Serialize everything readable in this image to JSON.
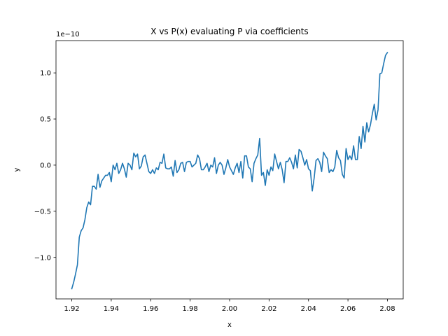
{
  "chart_data": {
    "type": "line",
    "title": "X vs P(x) evaluating P via coefficients",
    "xlabel": "x",
    "ylabel": "y",
    "offset_text": "1e−10",
    "xlim": [
      1.912,
      2.088
    ],
    "ylim": [
      -1.45,
      1.35
    ],
    "xticks": [
      1.92,
      1.94,
      1.96,
      1.98,
      2.0,
      2.02,
      2.04,
      2.06,
      2.08
    ],
    "xtick_labels": [
      "1.92",
      "1.94",
      "1.96",
      "1.98",
      "2.00",
      "2.02",
      "2.04",
      "2.06",
      "2.08"
    ],
    "yticks": [
      -1.0,
      -0.5,
      0.0,
      0.5,
      1.0
    ],
    "ytick_labels": [
      "−1.0",
      "−0.5",
      "0.0",
      "0.5",
      "1.0"
    ],
    "grid": false,
    "line_color": "#1f77b4",
    "series": [
      {
        "x_start": 1.92,
        "x_end": 2.08,
        "y": [
          -1.34,
          -1.27,
          -1.18,
          -1.08,
          -0.78,
          -0.71,
          -0.68,
          -0.59,
          -0.46,
          -0.4,
          -0.43,
          -0.23,
          -0.23,
          -0.26,
          -0.1,
          -0.24,
          -0.17,
          -0.14,
          -0.11,
          -0.11,
          -0.08,
          -0.18,
          0.0,
          -0.05,
          0.02,
          -0.09,
          -0.05,
          0.02,
          -0.04,
          -0.13,
          0.02,
          0.0,
          -0.05,
          0.13,
          0.09,
          0.12,
          -0.04,
          -0.01,
          0.09,
          0.11,
          0.02,
          -0.07,
          -0.09,
          -0.05,
          -0.09,
          -0.03,
          -0.05,
          0.03,
          0.02,
          0.12,
          -0.03,
          -0.04,
          -0.04,
          -0.02,
          -0.12,
          0.05,
          -0.08,
          -0.05,
          0.02,
          0.03,
          -0.07,
          0.03,
          0.04,
          0.04,
          -0.02,
          0.0,
          0.02,
          0.11,
          0.07,
          -0.05,
          -0.05,
          -0.02,
          0.02,
          -0.07,
          0.0,
          -0.02,
          0.08,
          -0.09,
          0.0,
          0.03,
          0.0,
          -0.1,
          -0.03,
          0.06,
          -0.02,
          -0.06,
          -0.1,
          -0.03,
          0.02,
          -0.08,
          0.04,
          -0.14,
          0.1,
          0.1,
          -0.02,
          -0.04,
          -0.18,
          0.02,
          0.07,
          0.11,
          0.29,
          -0.11,
          -0.08,
          -0.22,
          -0.05,
          -0.11,
          -0.02,
          -0.06,
          0.12,
          0.04,
          -0.04,
          0.03,
          -0.05,
          -0.19,
          0.04,
          0.04,
          0.08,
          0.03,
          -0.04,
          0.11,
          -0.03,
          0.17,
          0.15,
          0.08,
          0.0,
          0.06,
          -0.04,
          -0.06,
          -0.28,
          -0.14,
          0.05,
          0.07,
          0.03,
          -0.07,
          0.14,
          0.1,
          0.07,
          -0.08,
          -0.05,
          -0.07,
          -0.02,
          0.16,
          0.08,
          0.05,
          -0.1,
          -0.14,
          0.18,
          0.06,
          0.1,
          0.06,
          0.21,
          0.06,
          0.06,
          0.31,
          0.18,
          0.42,
          0.25,
          0.46,
          0.36,
          0.44,
          0.56,
          0.66,
          0.49,
          0.6,
          0.99,
          1.0,
          1.1,
          1.19,
          1.22
        ]
      }
    ]
  }
}
